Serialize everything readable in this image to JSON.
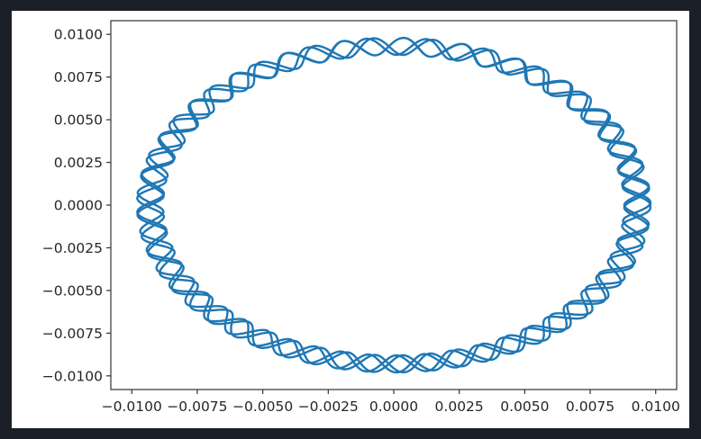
{
  "chart_data": {
    "type": "line",
    "title": "",
    "xlabel": "",
    "ylabel": "",
    "xlim": [
      -0.0108,
      0.0108
    ],
    "ylim": [
      -0.0108,
      0.0108
    ],
    "grid": false,
    "legend": "none",
    "x_ticks": [
      -0.01,
      -0.0075,
      -0.005,
      -0.0025,
      0.0,
      0.0025,
      0.005,
      0.0075,
      0.01
    ],
    "x_tick_labels": [
      "−0.0100",
      "−0.0075",
      "−0.0050",
      "−0.0025",
      "0.0000",
      "0.0025",
      "0.0050",
      "0.0075",
      "0.0100"
    ],
    "y_ticks": [
      0.01,
      0.0075,
      0.005,
      0.0025,
      0.0,
      -0.0025,
      -0.005,
      -0.0075,
      -0.01
    ],
    "y_tick_labels": [
      "0.0100",
      "0.0075",
      "0.0050",
      "0.0025",
      "0.0000",
      "−0.0025",
      "−0.0050",
      "−0.0075",
      "−0.0100"
    ],
    "series": [
      {
        "color": "#1f77b4",
        "curve": "precessing orbit: radius oscillating between 0.0088 and 0.0098 around the origin",
        "r_min": 0.0088,
        "r_max": 0.0098,
        "wobbles_per_revolution": 26.5,
        "revolutions": 4
      }
    ]
  }
}
